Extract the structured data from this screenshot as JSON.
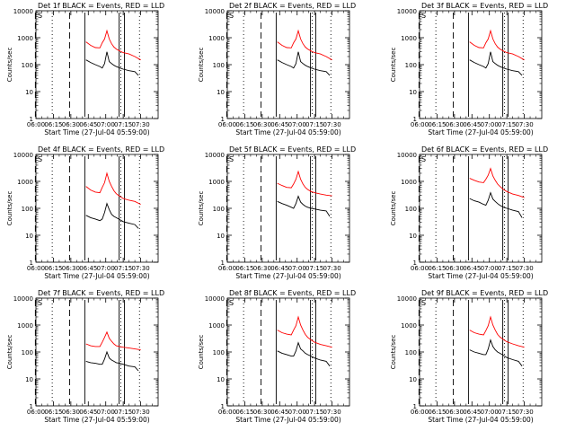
{
  "window": {
    "title": ""
  },
  "axes_common": {
    "ylabel": "Counts/sec",
    "xlabel": "Start Time (27-Jul-04 05:59:00)",
    "x_ticks": [
      "06:00",
      "06:15",
      "06:30",
      "06:45",
      "07:00",
      "07:15",
      "07:30"
    ],
    "y_ticks": [
      "1",
      "10",
      "100",
      "1000",
      "10000"
    ],
    "ylim": [
      1,
      10000
    ],
    "xlim_minutes_from_0600": [
      0,
      105
    ],
    "y_scale": "log",
    "legend_glyph": "S"
  },
  "colors": {
    "events": "#000000",
    "lld": "#ff0000",
    "axes": "#000000"
  },
  "chart_data": [
    {
      "type": "line",
      "title": "Det 1f BLACK = Events, RED = LLD",
      "series": [
        {
          "name": "Events",
          "color": "#000000",
          "x": [
            43,
            47,
            51,
            55,
            57,
            59,
            61,
            63,
            65,
            67,
            69,
            72,
            75,
            80,
            85,
            88
          ],
          "values": [
            150,
            120,
            100,
            85,
            75,
            110,
            300,
            130,
            110,
            95,
            85,
            75,
            68,
            60,
            55,
            40
          ]
        },
        {
          "name": "LLD",
          "color": "#ff0000",
          "x": [
            43,
            47,
            51,
            55,
            57,
            59,
            61,
            63,
            65,
            67,
            69,
            72,
            75,
            80,
            85,
            90
          ],
          "values": [
            700,
            520,
            430,
            420,
            650,
            900,
            1800,
            900,
            600,
            450,
            380,
            320,
            280,
            250,
            200,
            150
          ]
        }
      ]
    },
    {
      "type": "line",
      "title": "Det 2f BLACK = Events, RED = LLD",
      "series": [
        {
          "name": "Events",
          "color": "#000000",
          "x": [
            43,
            47,
            51,
            55,
            57,
            59,
            61,
            63,
            65,
            67,
            69,
            72,
            75,
            80,
            85,
            88
          ],
          "values": [
            150,
            120,
            100,
            85,
            75,
            110,
            300,
            130,
            110,
            95,
            85,
            75,
            68,
            60,
            55,
            40
          ]
        },
        {
          "name": "LLD",
          "color": "#ff0000",
          "x": [
            43,
            47,
            51,
            55,
            57,
            59,
            61,
            63,
            65,
            67,
            69,
            72,
            75,
            80,
            85,
            90
          ],
          "values": [
            700,
            520,
            430,
            420,
            650,
            900,
            1800,
            900,
            600,
            450,
            380,
            320,
            280,
            250,
            200,
            150
          ]
        }
      ]
    },
    {
      "type": "line",
      "title": "Det 3f BLACK = Events, RED = LLD",
      "series": [
        {
          "name": "Events",
          "color": "#000000",
          "x": [
            43,
            47,
            51,
            55,
            57,
            59,
            61,
            63,
            65,
            67,
            69,
            72,
            75,
            80,
            85,
            88
          ],
          "values": [
            150,
            120,
            100,
            85,
            75,
            110,
            300,
            130,
            110,
            95,
            85,
            75,
            68,
            60,
            55,
            40
          ]
        },
        {
          "name": "LLD",
          "color": "#ff0000",
          "x": [
            43,
            47,
            51,
            55,
            57,
            59,
            61,
            63,
            65,
            67,
            69,
            72,
            75,
            80,
            85,
            90
          ],
          "values": [
            700,
            520,
            430,
            420,
            650,
            900,
            1800,
            900,
            600,
            450,
            380,
            320,
            280,
            250,
            200,
            150
          ]
        }
      ]
    },
    {
      "type": "line",
      "title": "Det 4f BLACK = Events, RED = LLD",
      "series": [
        {
          "name": "Events",
          "color": "#000000",
          "x": [
            43,
            47,
            51,
            55,
            57,
            59,
            61,
            63,
            65,
            67,
            69,
            72,
            75,
            80,
            85,
            88
          ],
          "values": [
            55,
            45,
            40,
            35,
            40,
            70,
            150,
            90,
            60,
            50,
            45,
            38,
            32,
            28,
            25,
            18
          ]
        },
        {
          "name": "LLD",
          "color": "#ff0000",
          "x": [
            43,
            47,
            51,
            55,
            57,
            59,
            61,
            63,
            65,
            67,
            69,
            72,
            75,
            80,
            85,
            90
          ],
          "values": [
            650,
            480,
            400,
            380,
            600,
            900,
            2000,
            1000,
            650,
            450,
            350,
            280,
            230,
            200,
            180,
            140
          ]
        }
      ]
    },
    {
      "type": "line",
      "title": "Det 5f BLACK = Events, RED = LLD",
      "series": [
        {
          "name": "Events",
          "color": "#000000",
          "x": [
            43,
            47,
            51,
            55,
            57,
            59,
            61,
            63,
            65,
            67,
            69,
            72,
            75,
            80,
            85,
            88
          ],
          "values": [
            180,
            150,
            130,
            110,
            100,
            150,
            280,
            170,
            140,
            120,
            110,
            100,
            95,
            85,
            80,
            50
          ]
        },
        {
          "name": "LLD",
          "color": "#ff0000",
          "x": [
            43,
            47,
            51,
            55,
            57,
            59,
            61,
            63,
            65,
            67,
            69,
            72,
            75,
            80,
            85,
            90
          ],
          "values": [
            850,
            700,
            600,
            580,
            800,
            1200,
            2300,
            1200,
            800,
            600,
            500,
            420,
            380,
            340,
            310,
            290
          ]
        }
      ]
    },
    {
      "type": "line",
      "title": "Det 6f BLACK = Events, RED = LLD",
      "series": [
        {
          "name": "Events",
          "color": "#000000",
          "x": [
            43,
            47,
            51,
            55,
            57,
            59,
            61,
            63,
            65,
            67,
            69,
            72,
            75,
            80,
            85,
            88
          ],
          "values": [
            230,
            190,
            170,
            140,
            130,
            200,
            380,
            220,
            180,
            150,
            130,
            110,
            100,
            85,
            75,
            45
          ]
        },
        {
          "name": "LLD",
          "color": "#ff0000",
          "x": [
            43,
            47,
            51,
            55,
            57,
            59,
            61,
            63,
            65,
            67,
            69,
            72,
            75,
            80,
            85,
            90
          ],
          "values": [
            1300,
            1100,
            950,
            900,
            1200,
            1700,
            3000,
            1600,
            1100,
            800,
            650,
            500,
            420,
            340,
            300,
            250
          ]
        }
      ]
    },
    {
      "type": "line",
      "title": "Det 7f BLACK = Events, RED = LLD",
      "series": [
        {
          "name": "Events",
          "color": "#000000",
          "x": [
            43,
            47,
            51,
            55,
            57,
            59,
            61,
            63,
            65,
            67,
            69,
            72,
            75,
            80,
            85,
            88
          ],
          "values": [
            45,
            40,
            38,
            35,
            35,
            55,
            100,
            60,
            50,
            45,
            40,
            38,
            35,
            30,
            28,
            20
          ]
        },
        {
          "name": "LLD",
          "color": "#ff0000",
          "x": [
            43,
            47,
            51,
            55,
            57,
            59,
            61,
            63,
            65,
            67,
            69,
            72,
            75,
            80,
            85,
            90
          ],
          "values": [
            200,
            170,
            160,
            160,
            230,
            350,
            550,
            320,
            250,
            200,
            170,
            160,
            150,
            140,
            130,
            120
          ]
        }
      ]
    },
    {
      "type": "line",
      "title": "Det 8f BLACK = Events, RED = LLD",
      "series": [
        {
          "name": "Events",
          "color": "#000000",
          "x": [
            43,
            47,
            51,
            55,
            57,
            59,
            61,
            63,
            65,
            67,
            69,
            72,
            75,
            80,
            85,
            88
          ],
          "values": [
            110,
            90,
            80,
            70,
            70,
            110,
            220,
            130,
            110,
            90,
            80,
            70,
            60,
            50,
            45,
            30
          ]
        },
        {
          "name": "LLD",
          "color": "#ff0000",
          "x": [
            43,
            47,
            51,
            55,
            57,
            59,
            61,
            63,
            65,
            67,
            69,
            72,
            75,
            80,
            85,
            90
          ],
          "values": [
            650,
            520,
            460,
            430,
            650,
            950,
            2000,
            1000,
            650,
            450,
            350,
            280,
            230,
            190,
            170,
            150
          ]
        }
      ]
    },
    {
      "type": "line",
      "title": "Det 9f BLACK = Events, RED = LLD",
      "series": [
        {
          "name": "Events",
          "color": "#000000",
          "x": [
            43,
            47,
            51,
            55,
            57,
            59,
            61,
            63,
            65,
            67,
            69,
            72,
            75,
            80,
            85,
            88
          ],
          "values": [
            120,
            100,
            90,
            80,
            80,
            130,
            280,
            160,
            120,
            100,
            90,
            75,
            62,
            52,
            45,
            30
          ]
        },
        {
          "name": "LLD",
          "color": "#ff0000",
          "x": [
            43,
            47,
            51,
            55,
            57,
            59,
            61,
            63,
            65,
            67,
            69,
            72,
            75,
            80,
            85,
            90
          ],
          "values": [
            650,
            520,
            460,
            430,
            620,
            950,
            2000,
            1000,
            650,
            450,
            360,
            290,
            240,
            200,
            170,
            150
          ]
        }
      ]
    }
  ]
}
